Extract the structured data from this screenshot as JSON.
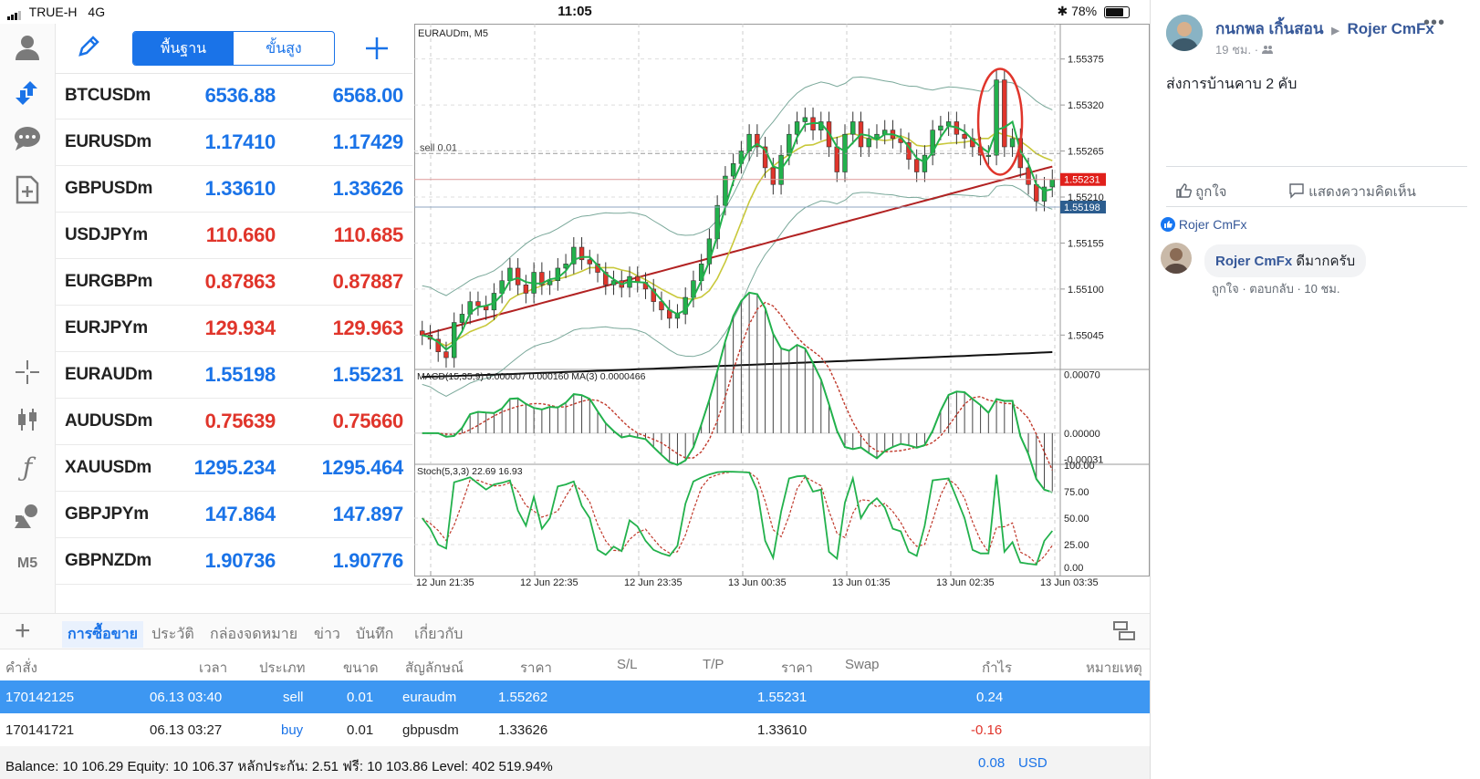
{
  "status": {
    "carrier": "TRUE-H",
    "network": "4G",
    "time": "11:05",
    "battery": "78%"
  },
  "colors": {
    "accent": "#1a73e8",
    "blue_price": "#1a73e8",
    "red_price": "#e0352b",
    "bull": "#22b14c",
    "bear": "#e0352b"
  },
  "rail_icons": [
    "user-icon",
    "trade-arrows-icon",
    "chat-icon",
    "add-document-icon",
    "crosshair-icon",
    "candles-icon",
    "function-icon",
    "shapes-icon"
  ],
  "rail": {
    "timeframe": "M5"
  },
  "quotes_header": {
    "tab_basic": "พื้นฐาน",
    "tab_advanced": "ขั้นสูง"
  },
  "quotes": [
    {
      "symbol": "BTCUSDm",
      "bid": "6536.88",
      "ask": "6568.00",
      "dir": "up"
    },
    {
      "symbol": "EURUSDm",
      "bid": "1.17410",
      "ask": "1.17429",
      "dir": "up"
    },
    {
      "symbol": "GBPUSDm",
      "bid": "1.33610",
      "ask": "1.33626",
      "dir": "up"
    },
    {
      "symbol": "USDJPYm",
      "bid": "110.660",
      "ask": "110.685",
      "dir": "down"
    },
    {
      "symbol": "EURGBPm",
      "bid": "0.87863",
      "ask": "0.87887",
      "dir": "down"
    },
    {
      "symbol": "EURJPYm",
      "bid": "129.934",
      "ask": "129.963",
      "dir": "down"
    },
    {
      "symbol": "EURAUDm",
      "bid": "1.55198",
      "ask": "1.55231",
      "dir": "up"
    },
    {
      "symbol": "AUDUSDm",
      "bid": "0.75639",
      "ask": "0.75660",
      "dir": "down"
    },
    {
      "symbol": "XAUUSDm",
      "bid": "1295.234",
      "ask": "1295.464",
      "dir": "up"
    },
    {
      "symbol": "GBPJPYm",
      "bid": "147.864",
      "ask": "147.897",
      "dir": "up"
    },
    {
      "symbol": "GBPNZDm",
      "bid": "1.90736",
      "ask": "1.90776",
      "dir": "up"
    }
  ],
  "chart_data": {
    "type": "candlestick",
    "title": "EURAUDm, M5",
    "order_line_label": "sell 0.01",
    "price_axis": [
      "1.55375",
      "1.55320",
      "1.55265",
      "1.55210",
      "1.55155",
      "1.55100",
      "1.55045"
    ],
    "ask_tag": "1.55231",
    "bid_tag": "1.55198",
    "ylim": [
      1.55005,
      1.55415
    ],
    "time_labels": [
      "12 Jun 21:35",
      "12 Jun 22:35",
      "12 Jun 23:35",
      "13 Jun 00:35",
      "13 Jun 01:35",
      "13 Jun 02:35",
      "13 Jun 03:35"
    ],
    "closes": [
      1.55045,
      1.5504,
      1.55025,
      1.55018,
      1.5506,
      1.5507,
      1.55085,
      1.5508,
      1.55075,
      1.55095,
      1.5511,
      1.55125,
      1.55105,
      1.55095,
      1.5512,
      1.55105,
      1.5511,
      1.55125,
      1.5513,
      1.5515,
      1.55135,
      1.5513,
      1.5512,
      1.55105,
      1.5511,
      1.55102,
      1.55115,
      1.55108,
      1.551,
      1.55085,
      1.55075,
      1.55065,
      1.5507,
      1.5509,
      1.5511,
      1.5513,
      1.5516,
      1.552,
      1.55235,
      1.5525,
      1.55265,
      1.55285,
      1.5527,
      1.55245,
      1.55225,
      1.5526,
      1.55285,
      1.553,
      1.55305,
      1.5529,
      1.553,
      1.5527,
      1.5524,
      1.55285,
      1.553,
      1.5527,
      1.5528,
      1.55285,
      1.5529,
      1.5528,
      1.55275,
      1.55255,
      1.5524,
      1.5526,
      1.5529,
      1.55295,
      1.553,
      1.55285,
      1.5528,
      1.5527,
      1.5526,
      1.5526,
      1.5535,
      1.5527,
      1.5528,
      1.55245,
      1.55225,
      1.55205,
      1.55222,
      1.55231
    ],
    "indicators": {
      "ma_fast_color": "#22b14c",
      "ma_mid_color": "#c8c83a",
      "ma_slow_color": "#b22222",
      "ma_long_color": "#111111",
      "bands_color": "#7aa89a"
    },
    "macd": {
      "label": "MACD(15,35,9) 0.000007 0.000160 MA(3) 0.0000466",
      "axis": [
        "0.00070",
        "0.00000",
        "-0.00031"
      ],
      "ylim": [
        -0.00036,
        0.00075
      ]
    },
    "stoch": {
      "label": "Stoch(5,3,3) 22.69 16.93",
      "axis": [
        "100.00",
        "75.00",
        "50.00",
        "25.00",
        "0.00"
      ],
      "ylim": [
        0,
        100
      ]
    }
  },
  "bottom_tabs": [
    "การซื้อขาย",
    "ประวัติ",
    "กล่องจดหมาย",
    "ข่าว",
    "บันทึก",
    "เกี่ยวกับ"
  ],
  "table": {
    "headers": [
      "คำสั่ง",
      "เวลา",
      "ประเภท",
      "ขนาด",
      "สัญลักษณ์",
      "ราคา",
      "S/L",
      "T/P",
      "ราคา",
      "Swap",
      "กำไร",
      "หมายเหตุ"
    ],
    "rows": [
      {
        "order": "170142125",
        "time": "06.13 03:40",
        "type": "sell",
        "size": "0.01",
        "symbol": "euraudm",
        "open": "1.55262",
        "sl": "",
        "tp": "",
        "price": "1.55231",
        "swap": "",
        "profit": "0.24",
        "note": ""
      },
      {
        "order": "170141721",
        "time": "06.13 03:27",
        "type": "buy",
        "size": "0.01",
        "symbol": "gbpusdm",
        "open": "1.33626",
        "sl": "",
        "tp": "",
        "price": "1.33610",
        "swap": "",
        "profit": "-0.16",
        "note": ""
      }
    ]
  },
  "footer": {
    "summary": "Balance: 10 106.29 Equity: 10 106.37 หลักประกัน: 2.51 ฟรี: 10 103.86 Level: 402 519.94%",
    "total": "0.08",
    "currency": "USD"
  },
  "fb": {
    "author": "กนกพล เกิ้นสอน",
    "target": "Rojer CmFx",
    "time": "19 ชม. ·",
    "post": "ส่งการบ้านคาบ 2 คับ",
    "like": "ถูกใจ",
    "comment": "แสดงความคิดเห็น",
    "reaction_by": "Rojer CmFx",
    "comment_author": "Rojer CmFx",
    "comment_text": "ดีมากครับ",
    "comment_meta": "ถูกใจ · ตอบกลับ · 10 ชม."
  }
}
